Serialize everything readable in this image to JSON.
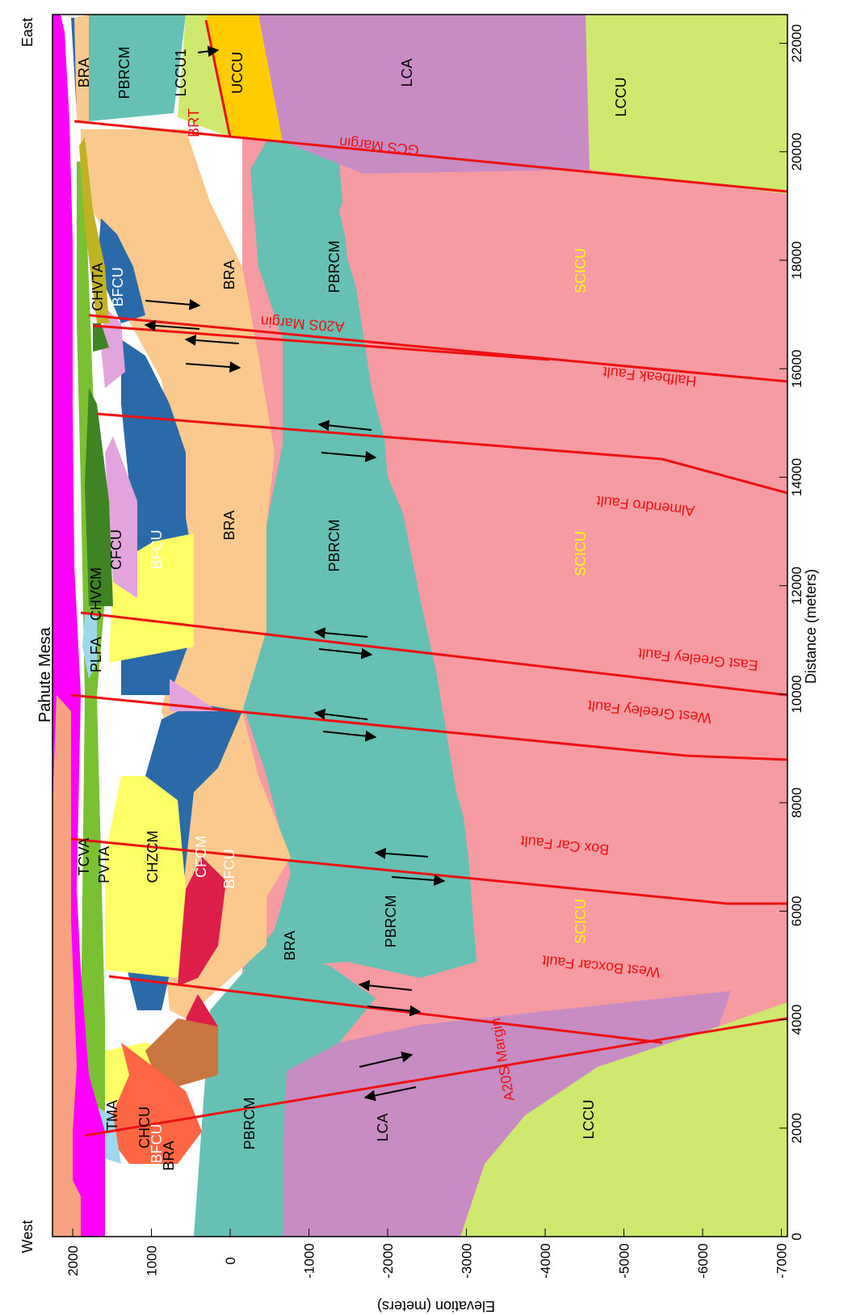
{
  "orientation_labels": {
    "west": "West",
    "east": "East"
  },
  "place_label": "Pahute Mesa",
  "axes": {
    "x_title": "Distance (meters)",
    "y_title": "Elevation (meters)",
    "x_ticks": [
      "0",
      "2000",
      "4000",
      "6000",
      "8000",
      "10000",
      "12000",
      "14000",
      "16000",
      "18000",
      "20000",
      "22000"
    ],
    "y_ticks": [
      "2000",
      "1000",
      "0",
      "-1000",
      "-2000",
      "-3000",
      "-4000",
      "-5000",
      "-6000",
      "-7000"
    ]
  },
  "colors": {
    "TMA": "#ff00ff",
    "CHCU": "#ff6644",
    "BFCU": "#2b6aa8",
    "BRA": "#fbc98e",
    "PBRCM": "#66c1b4",
    "LCA": "#c88cc4",
    "LCCU": "#cfe86e",
    "SCICU": "#f79ba3",
    "PVTA": "#79c133",
    "CHZCM": "#ffff66",
    "CFCM": "#dd1e48",
    "TCVA": "#f7a382",
    "CFCU": "#e3a3dc",
    "CHVCM": "#3f8424",
    "PLFA": "#9ed8ec",
    "CHVTA": "#c0b224",
    "UCCU": "#ffcc00",
    "LCCU1": "#cfe86e",
    "BROWN": "#c9753f",
    "fault": "#ee1111"
  },
  "unit_labels": [
    {
      "text": "TMA"
    },
    {
      "text": "CHCU"
    },
    {
      "text": "BFCU"
    },
    {
      "text": "BRA"
    },
    {
      "text": "PBRCM"
    },
    {
      "text": "LCA"
    },
    {
      "text": "LCCU"
    },
    {
      "text": "TCVA"
    },
    {
      "text": "PVTA"
    },
    {
      "text": "CHZCM"
    },
    {
      "text": "CFCM"
    },
    {
      "text": "BFCU"
    },
    {
      "text": "BRA"
    },
    {
      "text": "PBRCM"
    },
    {
      "text": "SCICU"
    },
    {
      "text": "PLFA"
    },
    {
      "text": "CHVCM"
    },
    {
      "text": "CFCU"
    },
    {
      "text": "BFCU"
    },
    {
      "text": "BRA"
    },
    {
      "text": "PBRCM"
    },
    {
      "text": "SCICU"
    },
    {
      "text": "CHVTA"
    },
    {
      "text": "BFCU"
    },
    {
      "text": "BRA"
    },
    {
      "text": "PBRCM"
    },
    {
      "text": "SCICU"
    },
    {
      "text": "BRA"
    },
    {
      "text": "PBRCM"
    },
    {
      "text": "LCCU1"
    },
    {
      "text": "UCCU"
    },
    {
      "text": "LCA"
    },
    {
      "text": "LCCU"
    },
    {
      "text": "BRT"
    }
  ],
  "fault_labels": [
    {
      "text": "A20S Margin"
    },
    {
      "text": "West Boxcar Fault"
    },
    {
      "text": "Box Car Fault"
    },
    {
      "text": "West Greeley Fault"
    },
    {
      "text": "East Greeley Fault"
    },
    {
      "text": "Almendro Fault"
    },
    {
      "text": "A20S Margin"
    },
    {
      "text": "Halfbeak Fault"
    },
    {
      "text": "GCS Margin"
    }
  ]
}
